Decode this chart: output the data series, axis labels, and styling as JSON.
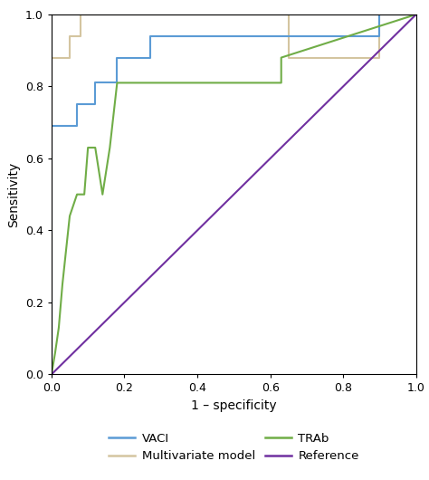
{
  "title": "",
  "xlabel": "1 – specificity",
  "ylabel": "Sensitivity",
  "xlim": [
    0.0,
    1.0
  ],
  "ylim": [
    0.0,
    1.0
  ],
  "xticks": [
    0.0,
    0.2,
    0.4,
    0.6,
    0.8,
    1.0
  ],
  "yticks": [
    0.0,
    0.2,
    0.4,
    0.6,
    0.8,
    1.0
  ],
  "background_color": "#ffffff",
  "VACI": {
    "x": [
      0.0,
      0.0,
      0.07,
      0.07,
      0.12,
      0.12,
      0.18,
      0.18,
      0.27,
      0.27,
      0.9,
      0.9,
      1.0
    ],
    "y": [
      0.0,
      0.69,
      0.69,
      0.75,
      0.75,
      0.81,
      0.81,
      0.88,
      0.88,
      0.94,
      0.94,
      1.0,
      1.0
    ],
    "color": "#5b9bd5",
    "linewidth": 1.5,
    "label": "VACI"
  },
  "TRAb": {
    "x": [
      0.0,
      0.01,
      0.02,
      0.03,
      0.05,
      0.07,
      0.09,
      0.1,
      0.12,
      0.14,
      0.16,
      0.18,
      0.2,
      0.63,
      0.63,
      1.0
    ],
    "y": [
      0.0,
      0.06,
      0.13,
      0.25,
      0.44,
      0.5,
      0.5,
      0.63,
      0.63,
      0.5,
      0.63,
      0.81,
      0.81,
      0.81,
      0.88,
      1.0
    ],
    "color": "#70ad47",
    "linewidth": 1.5,
    "label": "TRAb"
  },
  "Multivariate": {
    "x": [
      0.0,
      0.0,
      0.05,
      0.05,
      0.08,
      0.08,
      0.65,
      0.65,
      0.9,
      0.9,
      1.0
    ],
    "y": [
      0.0,
      0.88,
      0.88,
      0.94,
      0.94,
      1.0,
      1.0,
      0.88,
      0.88,
      1.0,
      1.0
    ],
    "color": "#d4c5a0",
    "linewidth": 1.5,
    "label": "Multivariate model"
  },
  "Reference": {
    "x": [
      0.0,
      1.0
    ],
    "y": [
      0.0,
      1.0
    ],
    "color": "#7030a0",
    "linewidth": 1.5,
    "label": "Reference"
  },
  "legend_fontsize": 9.5,
  "axis_label_fontsize": 10,
  "tick_fontsize": 9
}
